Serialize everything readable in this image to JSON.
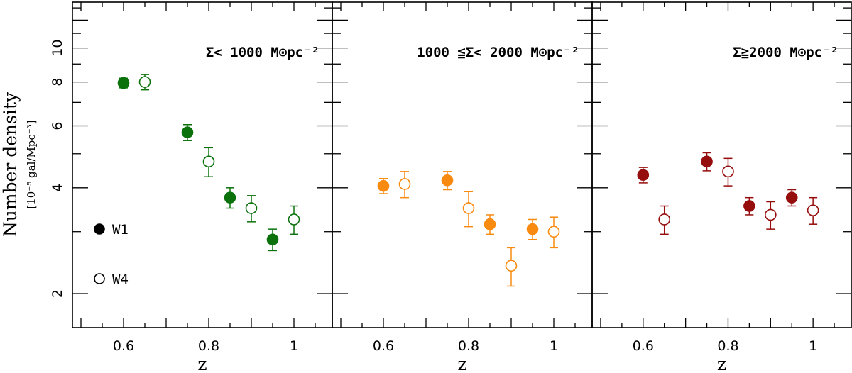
{
  "chart_data": [
    {
      "type": "scatter",
      "panel_label": "Σ< 1000 M⊙pc⁻²",
      "color": "#0b720b",
      "xlabel": "z",
      "ylabel": "Number density",
      "ylabel_units": "[10⁻⁵ gal/Mpc⁻³]",
      "xlim": [
        0.48,
        1.09
      ],
      "ylim": [
        1.6,
        13.5
      ],
      "yscale": "log",
      "x_ticks": [
        "0.6",
        "0.8",
        "1"
      ],
      "y_ticks": [
        "2",
        "4",
        "6",
        "8",
        "10"
      ],
      "series": [
        {
          "name": "W1",
          "marker": "filled",
          "x": [
            0.6,
            0.75,
            0.85,
            0.95
          ],
          "y": [
            7.95,
            5.75,
            3.75,
            2.85
          ],
          "err_low": [
            0.25,
            0.3,
            0.25,
            0.2
          ],
          "err_high": [
            0.25,
            0.3,
            0.25,
            0.2
          ]
        },
        {
          "name": "W4",
          "marker": "open",
          "x": [
            0.65,
            0.8,
            0.9,
            1.0
          ],
          "y": [
            8.0,
            4.75,
            3.5,
            3.25
          ],
          "err_low": [
            0.4,
            0.45,
            0.3,
            0.3
          ],
          "err_high": [
            0.4,
            0.45,
            0.3,
            0.3
          ]
        }
      ]
    },
    {
      "type": "scatter",
      "panel_label": "1000 ≦Σ< 2000 M⊙pc⁻²",
      "color": "#f98a10",
      "xlabel": "z",
      "xlim": [
        0.48,
        1.09
      ],
      "ylim": [
        1.6,
        13.5
      ],
      "yscale": "log",
      "x_ticks": [
        "0.6",
        "0.8",
        "1"
      ],
      "series": [
        {
          "name": "W1",
          "marker": "filled",
          "x": [
            0.6,
            0.75,
            0.85,
            0.95
          ],
          "y": [
            4.05,
            4.2,
            3.15,
            3.05
          ],
          "err_low": [
            0.2,
            0.25,
            0.2,
            0.2
          ],
          "err_high": [
            0.2,
            0.25,
            0.2,
            0.2
          ]
        },
        {
          "name": "W4",
          "marker": "open",
          "x": [
            0.65,
            0.8,
            0.9,
            1.0
          ],
          "y": [
            4.1,
            3.5,
            2.4,
            3.0
          ],
          "err_low": [
            0.35,
            0.4,
            0.3,
            0.3
          ],
          "err_high": [
            0.35,
            0.4,
            0.3,
            0.3
          ]
        }
      ]
    },
    {
      "type": "scatter",
      "panel_label": "Σ≧2000 M⊙pc⁻²",
      "color": "#960d0d",
      "xlabel": "z",
      "xlim": [
        0.48,
        1.09
      ],
      "ylim": [
        1.6,
        13.5
      ],
      "yscale": "log",
      "x_ticks": [
        "0.6",
        "0.8",
        "1"
      ],
      "series": [
        {
          "name": "W1",
          "marker": "filled",
          "x": [
            0.6,
            0.75,
            0.85,
            0.95
          ],
          "y": [
            4.35,
            4.75,
            3.55,
            3.75
          ],
          "err_low": [
            0.22,
            0.28,
            0.2,
            0.2
          ],
          "err_high": [
            0.22,
            0.28,
            0.2,
            0.2
          ]
        },
        {
          "name": "W4",
          "marker": "open",
          "x": [
            0.65,
            0.8,
            0.9,
            1.0
          ],
          "y": [
            3.25,
            4.45,
            3.35,
            3.45
          ],
          "err_low": [
            0.3,
            0.4,
            0.3,
            0.3
          ],
          "err_high": [
            0.3,
            0.4,
            0.3,
            0.3
          ]
        }
      ]
    }
  ],
  "legend": {
    "items": [
      {
        "label": "W1",
        "marker": "filled"
      },
      {
        "label": "W4",
        "marker": "open"
      }
    ]
  }
}
